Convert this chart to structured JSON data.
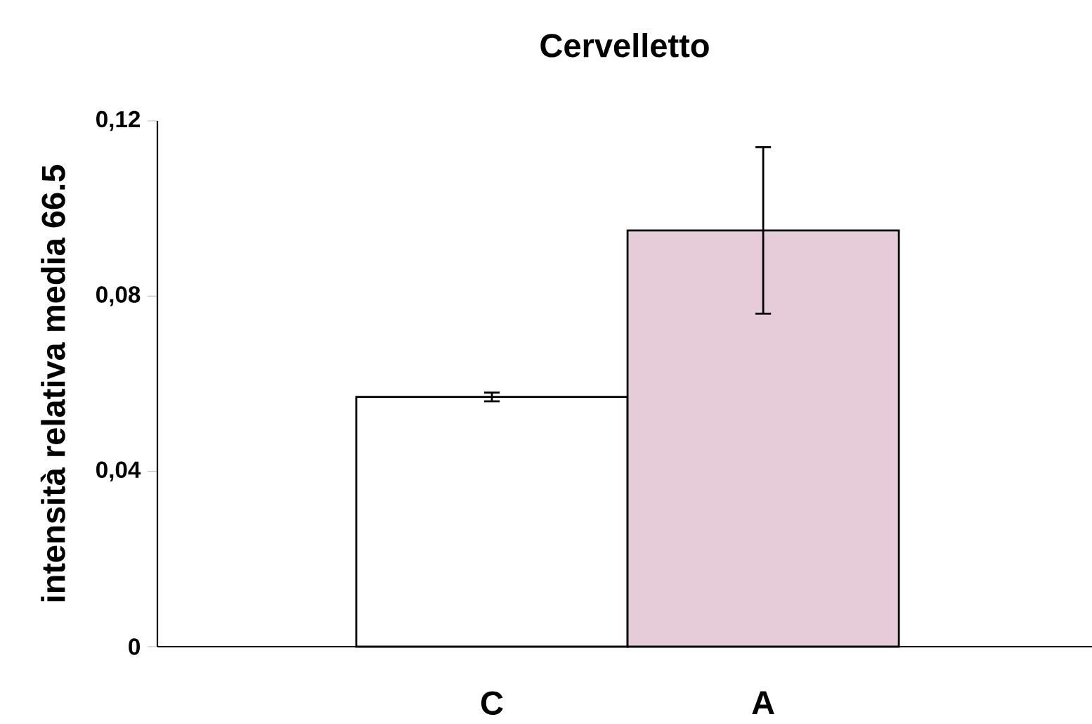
{
  "chart_data": {
    "type": "bar",
    "title": "Cervelletto",
    "ylabel": "intensità relativa media 66.5",
    "categories": [
      "C",
      "A"
    ],
    "values": [
      0.057,
      0.095
    ],
    "errors": [
      0.001,
      0.019
    ],
    "colors": [
      "#ffffff",
      "#e6ccd9"
    ],
    "ylim": [
      0,
      0.12
    ],
    "yticks": [
      0,
      {
        "value": 0.04,
        "label": "0,04"
      },
      {
        "value": 0.08,
        "label": "0,08"
      },
      {
        "value": 0.12,
        "label": "0,12"
      }
    ],
    "grid": false
  }
}
